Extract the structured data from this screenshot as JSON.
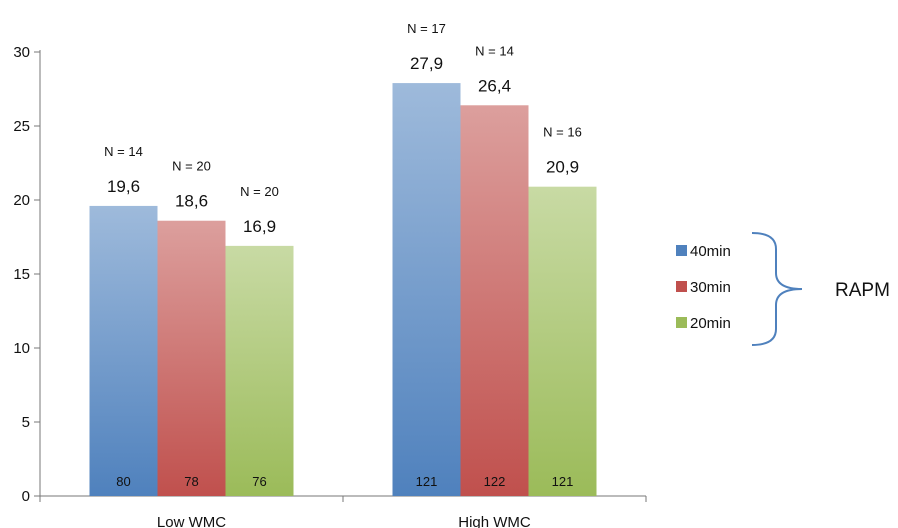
{
  "chart_data": {
    "type": "bar",
    "categories": [
      "Low WMC",
      "High WMC"
    ],
    "series": [
      {
        "name": "40min",
        "color": "#4f81bd",
        "values": [
          19.6,
          27.9
        ],
        "value_labels": [
          "19,6",
          "27,9"
        ],
        "n_labels": [
          "N = 14",
          "N = 17"
        ],
        "inner_labels": [
          "80",
          "121"
        ]
      },
      {
        "name": "30min",
        "color": "#c0504d",
        "values": [
          18.6,
          26.4
        ],
        "value_labels": [
          "18,6",
          "26,4"
        ],
        "n_labels": [
          "N = 20",
          "N = 14"
        ],
        "inner_labels": [
          "78",
          "122"
        ]
      },
      {
        "name": "20min",
        "color": "#9bbb59",
        "values": [
          16.9,
          20.9
        ],
        "value_labels": [
          "16,9",
          "20,9"
        ],
        "n_labels": [
          "N = 20",
          "N = 16"
        ],
        "inner_labels": [
          "76",
          "121"
        ]
      }
    ],
    "ylim": [
      0,
      30
    ],
    "yticks": [
      0,
      5,
      10,
      15,
      20,
      25,
      30
    ],
    "grid": false,
    "legend_position": "right",
    "brace_label": "RAPM"
  }
}
